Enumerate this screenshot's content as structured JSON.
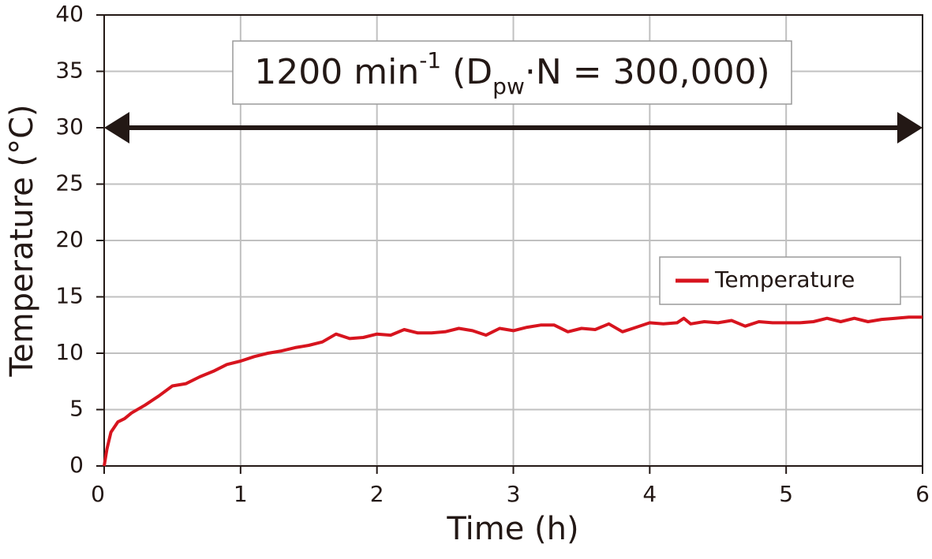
{
  "chart_data": {
    "type": "line",
    "xlabel": "Time (h)",
    "ylabel": "Temperature (°C)",
    "xlim": [
      0,
      6
    ],
    "xticks": [
      0,
      1,
      2,
      3,
      4,
      5,
      6
    ],
    "ylim": [
      0,
      40
    ],
    "yticks": [
      0,
      5,
      10,
      15,
      20,
      25,
      30,
      35,
      40
    ],
    "grid": true,
    "legend": "right",
    "annotation": [
      {
        "text": "1200 min"
      },
      {
        "text": "-1",
        "shift": "super"
      },
      {
        "text": " (D"
      },
      {
        "text": "pw",
        "shift": "sub"
      },
      {
        "text": "·N = 300,000)"
      }
    ],
    "arrow": {
      "y": 30,
      "x": [
        0,
        6
      ],
      "color": "#231815"
    },
    "x": [
      0,
      0.02,
      0.05,
      0.1,
      0.15,
      0.2,
      0.3,
      0.4,
      0.5,
      0.6,
      0.7,
      0.8,
      0.9,
      1.0,
      1.1,
      1.2,
      1.3,
      1.4,
      1.5,
      1.6,
      1.7,
      1.8,
      1.9,
      2.0,
      2.1,
      2.2,
      2.3,
      2.4,
      2.5,
      2.6,
      2.7,
      2.8,
      2.9,
      3.0,
      3.1,
      3.2,
      3.3,
      3.4,
      3.5,
      3.6,
      3.7,
      3.8,
      3.9,
      4.0,
      4.1,
      4.2,
      4.25,
      4.3,
      4.4,
      4.5,
      4.6,
      4.7,
      4.8,
      4.9,
      5.0,
      5.1,
      5.2,
      5.3,
      5.4,
      5.5,
      5.6,
      5.7,
      5.8,
      5.9,
      6.0
    ],
    "series": [
      {
        "name": "Temperature",
        "color": "#d7141e",
        "values": [
          0,
          1.5,
          3.0,
          3.9,
          4.2,
          4.7,
          5.4,
          6.2,
          7.1,
          7.3,
          7.9,
          8.4,
          9.0,
          9.3,
          9.7,
          10.0,
          10.2,
          10.5,
          10.7,
          11.0,
          11.7,
          11.3,
          11.4,
          11.7,
          11.6,
          12.1,
          11.8,
          11.8,
          11.9,
          12.2,
          12.0,
          11.6,
          12.2,
          12.0,
          12.3,
          12.5,
          12.5,
          11.9,
          12.2,
          12.1,
          12.6,
          11.9,
          12.3,
          12.7,
          12.6,
          12.7,
          13.1,
          12.6,
          12.8,
          12.7,
          12.9,
          12.4,
          12.8,
          12.7,
          12.7,
          12.7,
          12.8,
          13.1,
          12.8,
          13.1,
          12.8,
          13.0,
          13.1,
          13.2,
          13.2
        ]
      }
    ]
  }
}
